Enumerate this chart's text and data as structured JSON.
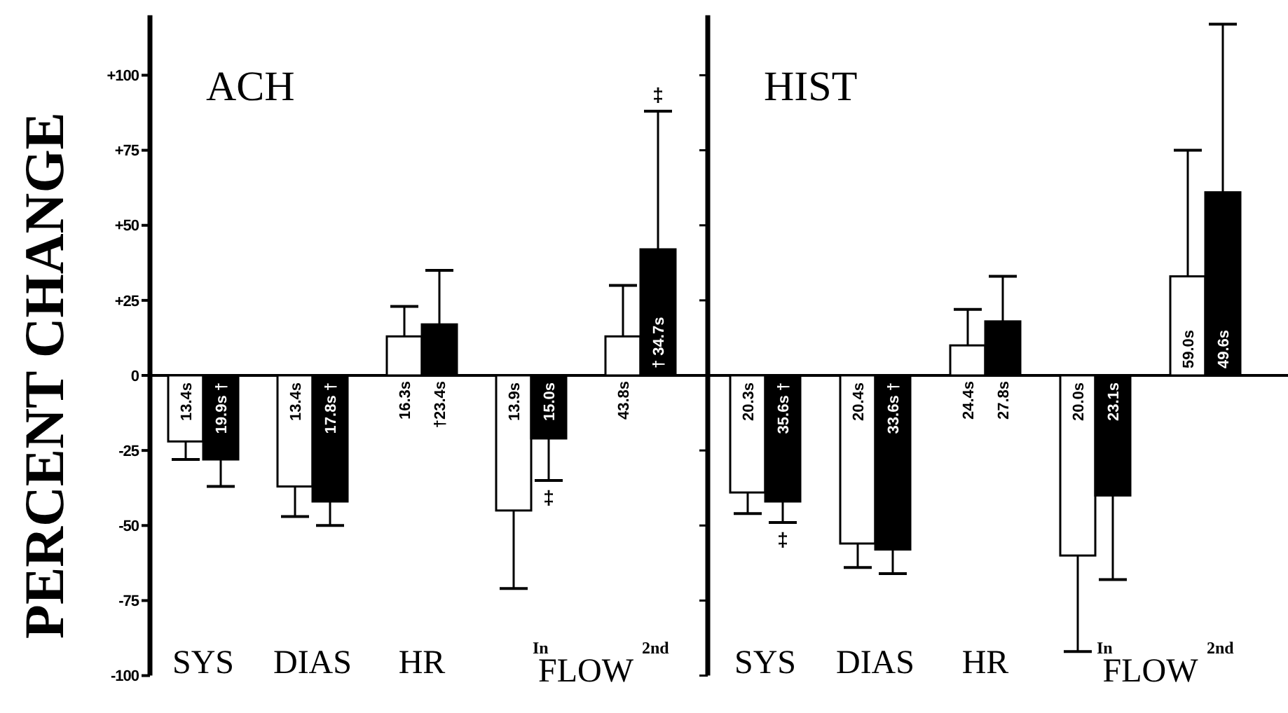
{
  "chart_data": [
    {
      "type": "bar",
      "title": "ACH",
      "ylabel": "PERCENT CHANGE",
      "categories": [
        "SYS",
        "DIAS",
        "HR",
        "In",
        "2nd"
      ],
      "series": [
        {
          "color": "#ffffff",
          "values": [
            -22,
            -37,
            13,
            -45,
            13
          ],
          "errors": [
            [
              -28,
              -22
            ],
            [
              -47,
              -37
            ],
            [
              13,
              23
            ],
            [
              -71,
              -45
            ],
            [
              13,
              30
            ]
          ]
        },
        {
          "color": "#000000",
          "values": [
            -28,
            -42,
            17,
            -21,
            42
          ],
          "errors": [
            [
              -37,
              -28
            ],
            [
              -50,
              -42
            ],
            [
              17,
              35
            ],
            [
              -35,
              -21
            ],
            [
              42,
              88
            ]
          ]
        }
      ],
      "ylim": [
        -100,
        120
      ],
      "yticks": [
        {
          "value": -100,
          "label": "-100"
        },
        -75,
        -50,
        -25,
        0,
        {
          "value": 25,
          "label": "+25"
        },
        {
          "value": 50,
          "label": "+50"
        },
        {
          "value": 75,
          "label": "+75"
        },
        {
          "value": 100,
          "label": "+100"
        }
      ],
      "annotations": [
        "FLOW",
        "13.4s",
        "19.9s †",
        "13.4s",
        "17.8s †",
        "16.3s",
        "†23.4s",
        "13.9s",
        "15.0s",
        "43.8s",
        "† 34.7s",
        {
          "text": "‡",
          "x": "In",
          "y": -35
        },
        {
          "text": "‡",
          "x": "2nd",
          "y": 88
        }
      ]
    },
    {
      "type": "bar",
      "title": "HIST",
      "categories": [
        "SYS",
        "DIAS",
        "HR",
        "In",
        "2nd"
      ],
      "series": [
        {
          "color": "#ffffff",
          "values": [
            -39,
            -56,
            10,
            -60,
            33
          ],
          "errors": [
            [
              -46,
              -39
            ],
            [
              -64,
              -56
            ],
            [
              10,
              22
            ],
            [
              -92,
              -60
            ],
            [
              33,
              75
            ]
          ]
        },
        {
          "color": "#000000",
          "values": [
            -42,
            -58,
            18,
            -40,
            61
          ],
          "errors": [
            [
              -49,
              -42
            ],
            [
              -66,
              -58
            ],
            [
              18,
              33
            ],
            [
              -68,
              -40
            ],
            [
              61,
              117
            ]
          ]
        }
      ],
      "ylim": [
        -100,
        120
      ],
      "yticks": [
        {
          "value": -100,
          "label": null
        },
        {
          "value": -75,
          "label": null
        },
        {
          "value": -50,
          "label": null
        },
        {
          "value": -25,
          "label": null
        },
        {
          "value": 0,
          "label": null
        },
        {
          "value": 25,
          "label": null
        },
        {
          "value": 50,
          "label": null
        },
        {
          "value": 75,
          "label": null
        },
        {
          "value": 100,
          "label": null
        }
      ],
      "tick_labels": "x",
      "annotations": [
        "FLOW",
        "20.3s",
        "35.6s †",
        "20.4s",
        "33.6s †",
        "24.4s",
        "27.8s",
        "20.0s",
        "23.1s",
        "59.0s",
        "49.6s",
        {
          "text": "‡",
          "x": "SYS",
          "y": -49
        }
      ]
    }
  ]
}
